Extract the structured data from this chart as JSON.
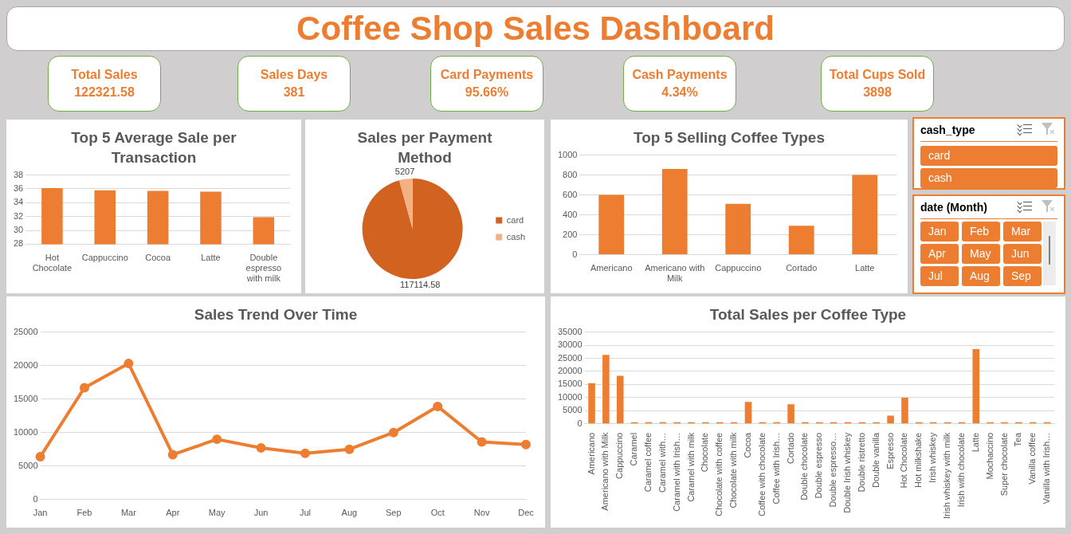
{
  "chart_data": [
    {
      "type": "other",
      "title": "Coffee Shop Sales Dashboard",
      "categories": [
        "Total Sales",
        "Sales Days",
        "Card Payments",
        "Cash Payments",
        "Total Cups Sold"
      ],
      "value_labels": [
        "122321.58",
        "381",
        "95.66%",
        "4.34%",
        "3898"
      ]
    },
    {
      "type": "bar",
      "title": "Top 5 Average Sale per Transaction",
      "categories": [
        "Hot Chocolate",
        "Cappuccino",
        "Cocoa",
        "Latte",
        "Double espresso with milk"
      ],
      "values": [
        36.1,
        35.8,
        35.7,
        35.6,
        31.9
      ],
      "color": "#ed7d31",
      "ylim": [
        28,
        38
      ],
      "yticks": [
        28,
        30,
        32,
        34,
        36,
        38
      ],
      "grid": "y",
      "legend": false
    },
    {
      "type": "pie",
      "title": "Sales per Payment Method",
      "categories": [
        "card",
        "cash"
      ],
      "values": [
        117114.58,
        5207
      ],
      "colors": [
        "#d2621f",
        "#f4b183"
      ],
      "data_labels": true,
      "legend": "right"
    },
    {
      "type": "bar",
      "title": "Top 5 Selling Coffee Types",
      "categories": [
        "Americano",
        "Americano with Milk",
        "Cappuccino",
        "Cortado",
        "Latte"
      ],
      "values": [
        600,
        860,
        510,
        290,
        800
      ],
      "color": "#ed7d31",
      "ylim": [
        0,
        1000
      ],
      "yticks": [
        0,
        200,
        400,
        600,
        800,
        1000
      ],
      "grid": "y",
      "legend": false
    },
    {
      "type": "other",
      "title": "cash_type",
      "categories": [
        "card",
        "cash"
      ]
    },
    {
      "type": "other",
      "title": "date (Month)",
      "categories": [
        "Jan",
        "Feb",
        "Mar",
        "Apr",
        "May",
        "Jun",
        "Jul",
        "Aug",
        "Sep"
      ]
    },
    {
      "type": "line",
      "title": "Sales Trend Over Time",
      "categories": [
        "Jan",
        "Feb",
        "Mar",
        "Apr",
        "May",
        "Jun",
        "Jul",
        "Aug",
        "Sep",
        "Oct",
        "Nov",
        "Dec"
      ],
      "values": [
        6400,
        16700,
        20300,
        6700,
        9000,
        7700,
        6900,
        7500,
        10000,
        13900,
        8600,
        8200
      ],
      "color": "#ed7d31",
      "ylim": [
        0,
        25000
      ],
      "yticks": [
        0,
        5000,
        10000,
        15000,
        20000,
        25000
      ],
      "grid": "y",
      "marker": "circle",
      "line_style": "solid",
      "legend": false
    },
    {
      "type": "bar",
      "title": "Total Sales per Coffee Type",
      "categories": [
        "Americano",
        "Americano with Milk",
        "Cappuccino",
        "Caramel",
        "Caramel coffee",
        "Caramel with…",
        "Caramel with Irish…",
        "Caramel with milk",
        "Chocolate",
        "Chocolate with coffee",
        "Chocolate with milk",
        "Cocoa",
        "Coffee with chocolate",
        "Coffee with Irish…",
        "Cortado",
        "Double chocolate",
        "Double espresso",
        "Double espresso…",
        "Double Irish whiskey",
        "Double ristretto",
        "Double vanilla",
        "Espresso",
        "Hot Chocolate",
        "Hot milkshake",
        "Irish whiskey",
        "Irish whiskey with milk",
        "Irish with chocolate",
        "Latte",
        "Mochaccino",
        "Super chocolate",
        "Tea",
        "Vanilla coffee",
        "Vanilla with Irish…"
      ],
      "values": [
        15500,
        26300,
        18300,
        200,
        200,
        200,
        200,
        200,
        200,
        200,
        200,
        8400,
        200,
        200,
        7500,
        200,
        200,
        200,
        200,
        200,
        200,
        3100,
        10000,
        200,
        200,
        200,
        200,
        28500,
        200,
        200,
        200,
        200,
        200
      ],
      "color": "#ed7d31",
      "ylim": [
        0,
        35000
      ],
      "yticks": [
        0,
        5000,
        10000,
        15000,
        20000,
        25000,
        30000,
        35000
      ],
      "grid": "y",
      "legend": false
    }
  ]
}
